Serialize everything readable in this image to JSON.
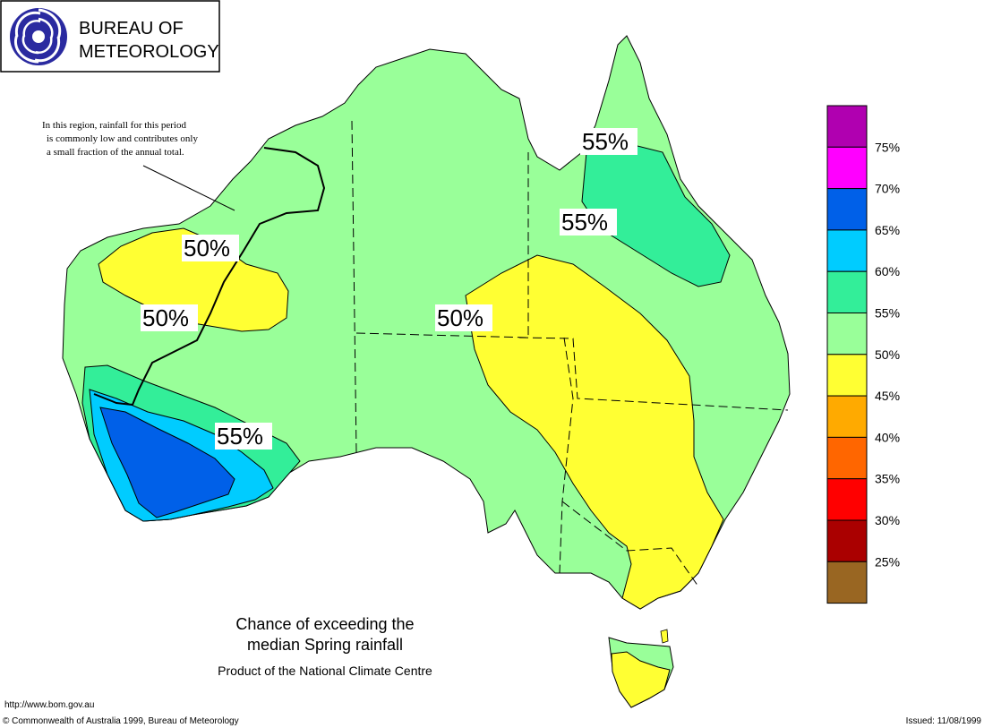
{
  "logo": {
    "org_line1": "BUREAU OF",
    "org_line2": "METEOROLOGY"
  },
  "note": {
    "line1": "In this region, rainfall for this period",
    "line2": "is commonly low and contributes only",
    "line3": "a small fraction of the annual total."
  },
  "map_labels": [
    {
      "id": "nq-55a",
      "text": "55%"
    },
    {
      "id": "nq-55b",
      "text": "55%"
    },
    {
      "id": "wa-50a",
      "text": "50%"
    },
    {
      "id": "wa-50b",
      "text": "50%"
    },
    {
      "id": "central-50",
      "text": "50%"
    },
    {
      "id": "sw-55",
      "text": "55%"
    }
  ],
  "legend": {
    "items": [
      {
        "label": "75%",
        "color": "#b000b0"
      },
      {
        "label": "70%",
        "color": "#ff00ff"
      },
      {
        "label": "65%",
        "color": "#0060e8"
      },
      {
        "label": "60%",
        "color": "#00ccff"
      },
      {
        "label": "55%",
        "color": "#33ee99"
      },
      {
        "label": "50%",
        "color": "#99ff99"
      },
      {
        "label": "45%",
        "color": "#ffff33"
      },
      {
        "label": "40%",
        "color": "#ffaa00"
      },
      {
        "label": "35%",
        "color": "#ff6600"
      },
      {
        "label": "30%",
        "color": "#ff0000"
      },
      {
        "label": "25%",
        "color": "#aa0000"
      },
      {
        "label": "",
        "color": "#996622"
      }
    ]
  },
  "caption": {
    "line1": "Chance of exceeding the",
    "line2": "median Spring rainfall",
    "line3": "Product of the National Climate Centre"
  },
  "footer": {
    "url": "http://www.bom.gov.au",
    "copyright": "© Commonwealth of Australia 1999, Bureau of Meteorology",
    "issued": "Issued: 11/08/1999"
  },
  "colors": {
    "c45": "#ffff33",
    "c50": "#99ff99",
    "c55": "#33ee99",
    "c60": "#00ccff",
    "c65": "#0060e8"
  }
}
